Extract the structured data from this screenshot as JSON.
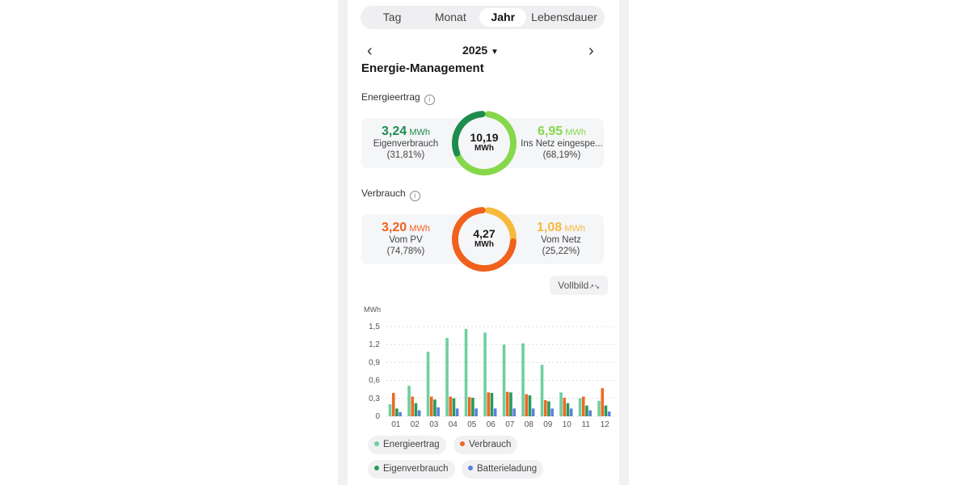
{
  "tabs": [
    "Tag",
    "Monat",
    "Jahr",
    "Lebensdauer"
  ],
  "active_tab": "Jahr",
  "year": "2025",
  "title": "Energie-Management",
  "energieertrag": {
    "label": "Energieertrag",
    "total": "10,19",
    "unit": "MWh",
    "left": {
      "value": "3,24",
      "unit": "MWh",
      "label": "Eigenverbrauch",
      "pct": "(31,81%)",
      "fraction": 0.3181,
      "color": "#1e8c4e"
    },
    "right": {
      "value": "6,95",
      "unit": "MWh",
      "label": "Ins Netz eingespe...",
      "pct": "(68,19%)",
      "fraction": 0.6819,
      "color": "#86d84a"
    }
  },
  "verbrauch": {
    "label": "Verbrauch",
    "total": "4,27",
    "unit": "MWh",
    "left": {
      "value": "3,20",
      "unit": "MWh",
      "label": "Vom PV",
      "pct": "(74,78%)",
      "fraction": 0.7478,
      "color": "#f0611c"
    },
    "right": {
      "value": "1,08",
      "unit": "MWh",
      "label": "Vom Netz",
      "pct": "(25,22%)",
      "fraction": 0.2522,
      "color": "#f6b93b"
    }
  },
  "vollbild": "Vollbild",
  "chart_data": {
    "type": "bar",
    "ylabel": "MWh",
    "ylim": [
      0,
      1.5
    ],
    "yticks": [
      "0",
      "0,3",
      "0,6",
      "0,9",
      "1,2",
      "1,5"
    ],
    "grid": true,
    "legend": "bottom",
    "categories": [
      "01",
      "02",
      "03",
      "04",
      "05",
      "06",
      "07",
      "08",
      "09",
      "10",
      "11",
      "12"
    ],
    "series": [
      {
        "name": "Energieertrag",
        "color": "#6fcf9f",
        "values": [
          0.2,
          0.51,
          1.08,
          1.31,
          1.46,
          1.4,
          1.2,
          1.22,
          0.86,
          0.4,
          0.3,
          0.26
        ]
      },
      {
        "name": "Verbrauch",
        "color": "#ee6a24",
        "values": [
          0.39,
          0.33,
          0.33,
          0.33,
          0.32,
          0.4,
          0.41,
          0.37,
          0.27,
          0.31,
          0.33,
          0.47
        ]
      },
      {
        "name": "Eigenverbrauch",
        "color": "#2a9a5a",
        "values": [
          0.13,
          0.22,
          0.28,
          0.3,
          0.31,
          0.39,
          0.4,
          0.35,
          0.25,
          0.22,
          0.18,
          0.18
        ]
      },
      {
        "name": "Batterieladung",
        "color": "#5b7fe0",
        "values": [
          0.07,
          0.1,
          0.15,
          0.13,
          0.13,
          0.13,
          0.13,
          0.13,
          0.13,
          0.13,
          0.1,
          0.08
        ]
      }
    ]
  }
}
